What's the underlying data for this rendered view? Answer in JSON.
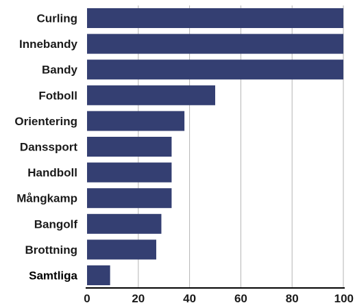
{
  "chart_data": {
    "type": "bar",
    "orientation": "horizontal",
    "categories": [
      "Curling",
      "Innebandy",
      "Bandy",
      "Fotboll",
      "Orientering",
      "Danssport",
      "Handboll",
      "Mångkamp",
      "Bangolf",
      "Brottning",
      "Samtliga"
    ],
    "values": [
      100,
      100,
      100,
      50,
      38,
      33,
      33,
      33,
      29,
      27,
      9
    ],
    "highlight_category": "Samtliga",
    "xlim": [
      0,
      100
    ],
    "xticks": [
      0,
      20,
      40,
      60,
      80,
      100
    ],
    "title": "",
    "xlabel": "",
    "ylabel": "",
    "grid": "vertical",
    "colors": {
      "bar": "#343f72",
      "grid": "#b3b3b3",
      "axis": "#000000"
    }
  }
}
